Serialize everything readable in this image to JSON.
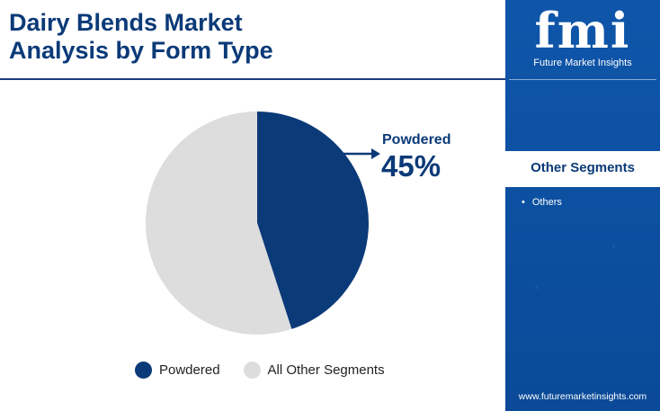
{
  "title": {
    "line1": "Dairy Blends Market",
    "line2": "Analysis by Form Type"
  },
  "brand": {
    "mark": "fmi",
    "name": "Future Market Insights",
    "website": "www.futuremarketinsights.com"
  },
  "side_panel": {
    "heading": "Other Segments",
    "items": [
      "Others"
    ]
  },
  "callout": {
    "label": "Powdered",
    "value": "45%"
  },
  "colors": {
    "powdered": "#0b3a78",
    "others": "#dddddd",
    "panel": "#0d4fa0"
  },
  "chart_data": {
    "type": "pie",
    "title": "Dairy Blends Market Analysis by Form Type",
    "slices": [
      {
        "name": "Powdered",
        "value": 45,
        "color": "#0b3a78"
      },
      {
        "name": "All Other Segments",
        "value": 55,
        "color": "#dddddd"
      }
    ],
    "legend_position": "bottom"
  }
}
